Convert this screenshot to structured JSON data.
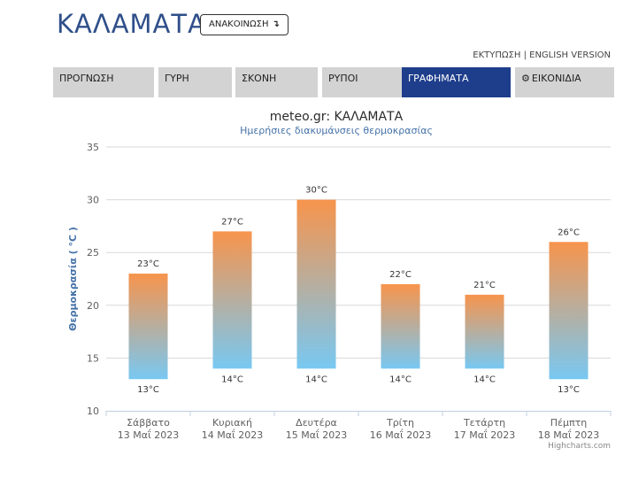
{
  "header": {
    "city": "ΚΑΛΑΜΑΤΑ",
    "announce_label": "ΑΝΑΚΟΙΝΩΣΗ",
    "announce_arrow": "↴",
    "links": {
      "print": "ΕΚΤΥΠΩΣΗ",
      "separator": " | ",
      "english": "ENGLISH VERSION"
    }
  },
  "tabs": [
    {
      "label": "ΠΡΟΓΝΩΣΗ",
      "active": false
    },
    {
      "label": "ΓΥΡΗ",
      "active": false
    },
    {
      "label": "ΣΚΟΝΗ",
      "active": false
    },
    {
      "label": "ΡΥΠΟΙ",
      "active": false
    },
    {
      "label": "ΓΡΑΦΗΜΑΤΑ",
      "active": true
    },
    {
      "label": "ΕΙΚΟΝΙΔΙΑ",
      "active": false,
      "icon": "gear-icon"
    }
  ],
  "colors": {
    "accent": "#1e3e8c",
    "bar_top": "#f7944c",
    "bar_bottom": "#78c8f2",
    "axis_title": "#4572a7"
  },
  "chart_data": {
    "type": "bar",
    "subtype": "columnrange",
    "title": "meteo.gr: ΚΑΛΑΜΑΤΑ",
    "subtitle": "Ημερήσιες διακυμάνσεις θερμοκρασίας",
    "ylabel": "Θερμοκρασία ( °C )",
    "ylim": [
      10,
      35
    ],
    "yticks": [
      10,
      15,
      20,
      25,
      30,
      35
    ],
    "grid": true,
    "unit": "°C",
    "categories": [
      {
        "day": "Σάββατο",
        "date": "13 Μαΐ 2023"
      },
      {
        "day": "Κυριακή",
        "date": "14 Μαΐ 2023"
      },
      {
        "day": "Δευτέρα",
        "date": "15 Μαΐ 2023"
      },
      {
        "day": "Τρίτη",
        "date": "16 Μαΐ 2023"
      },
      {
        "day": "Τετάρτη",
        "date": "17 Μαΐ 2023"
      },
      {
        "day": "Πέμπτη",
        "date": "18 Μαΐ 2023"
      }
    ],
    "low": [
      13,
      14,
      14,
      14,
      14,
      13
    ],
    "high": [
      23,
      27,
      30,
      22,
      21,
      26
    ],
    "credit": "Highcharts.com"
  }
}
